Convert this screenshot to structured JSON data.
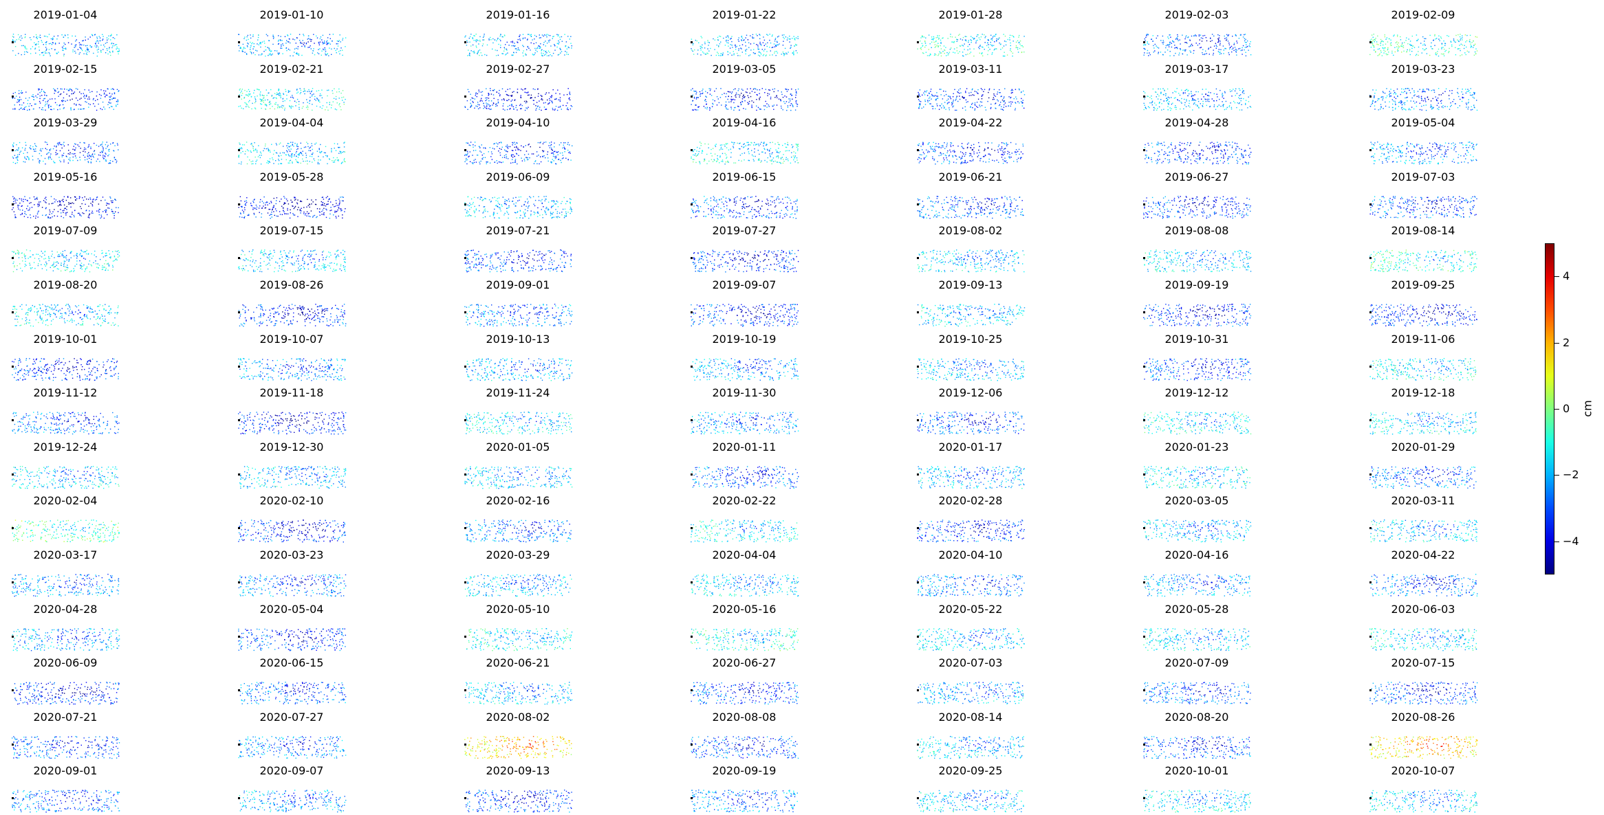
{
  "chart_data": {
    "type": "scatter",
    "description_of_panels": "small-multiple scatter maps of displacement per acquisition date",
    "colormap": "jet",
    "panel_titles": [
      "2019-01-04",
      "2019-01-10",
      "2019-01-16",
      "2019-01-22",
      "2019-01-28",
      "2019-02-03",
      "2019-02-09",
      "2019-02-15",
      "2019-02-21",
      "2019-02-27",
      "2019-03-05",
      "2019-03-11",
      "2019-03-17",
      "2019-03-23",
      "2019-03-29",
      "2019-04-04",
      "2019-04-10",
      "2019-04-16",
      "2019-04-22",
      "2019-04-28",
      "2019-05-04",
      "2019-05-16",
      "2019-05-28",
      "2019-06-09",
      "2019-06-15",
      "2019-06-21",
      "2019-06-27",
      "2019-07-03",
      "2019-07-09",
      "2019-07-15",
      "2019-07-21",
      "2019-07-27",
      "2019-08-02",
      "2019-08-08",
      "2019-08-14",
      "2019-08-20",
      "2019-08-26",
      "2019-09-01",
      "2019-09-07",
      "2019-09-13",
      "2019-09-19",
      "2019-09-25",
      "2019-10-01",
      "2019-10-07",
      "2019-10-13",
      "2019-10-19",
      "2019-10-25",
      "2019-10-31",
      "2019-11-06",
      "2019-11-12",
      "2019-11-18",
      "2019-11-24",
      "2019-11-30",
      "2019-12-06",
      "2019-12-12",
      "2019-12-18",
      "2019-12-24",
      "2019-12-30",
      "2020-01-05",
      "2020-01-11",
      "2020-01-17",
      "2020-01-23",
      "2020-01-29",
      "2020-02-04",
      "2020-02-10",
      "2020-02-16",
      "2020-02-22",
      "2020-02-28",
      "2020-03-05",
      "2020-03-11",
      "2020-03-17",
      "2020-03-23",
      "2020-03-29",
      "2020-04-04",
      "2020-04-10",
      "2020-04-16",
      "2020-04-22",
      "2020-04-28",
      "2020-05-04",
      "2020-05-10",
      "2020-05-16",
      "2020-05-22",
      "2020-05-28",
      "2020-06-03",
      "2020-06-09",
      "2020-06-15",
      "2020-06-21",
      "2020-06-27",
      "2020-07-03",
      "2020-07-09",
      "2020-07-15",
      "2020-07-21",
      "2020-07-27",
      "2020-08-02",
      "2020-08-08",
      "2020-08-14",
      "2020-08-20",
      "2020-08-26",
      "2020-09-01",
      "2020-09-07",
      "2020-09-13",
      "2020-09-19",
      "2020-09-25",
      "2020-10-01",
      "2020-10-07"
    ],
    "panel_mean_cm": [
      -1.6,
      -1.8,
      -1.6,
      -1.5,
      -0.8,
      -2.4,
      -0.6,
      -2.6,
      -0.9,
      -3.2,
      -2.9,
      -2.7,
      -1.6,
      -2.2,
      -2.2,
      -1.2,
      -2.6,
      -1.0,
      -2.7,
      -2.7,
      -2.0,
      -3.4,
      -3.3,
      -1.6,
      -2.6,
      -2.4,
      -2.8,
      -2.6,
      -1.0,
      -1.4,
      -2.8,
      -2.9,
      -1.4,
      -1.4,
      -0.6,
      -1.2,
      -3.0,
      -2.2,
      -2.9,
      -1.4,
      -3.0,
      -3.1,
      -3.0,
      -2.0,
      -1.8,
      -1.8,
      -1.6,
      -2.6,
      -1.0,
      -2.4,
      -3.3,
      -1.2,
      -2.0,
      -2.6,
      -1.0,
      -1.2,
      -1.4,
      -1.6,
      -1.6,
      -2.4,
      -1.8,
      -1.2,
      -2.2,
      -0.3,
      -3.0,
      -2.2,
      -1.0,
      -2.8,
      -1.6,
      -1.4,
      -2.0,
      -2.2,
      -1.6,
      -1.4,
      -2.2,
      -1.8,
      -2.4,
      -1.8,
      -2.8,
      -1.0,
      -0.8,
      -1.4,
      -1.4,
      -1.2,
      -3.0,
      -2.4,
      -1.6,
      -2.6,
      -1.8,
      -2.4,
      -2.8,
      -2.6,
      -2.2,
      1.2,
      -2.6,
      -1.4,
      -2.6,
      1.2,
      -2.4,
      -1.8,
      -2.8,
      -2.2,
      -1.4,
      -1.2,
      -1.4
    ],
    "colorbar": {
      "label": "cm",
      "vmin": -5,
      "vmax": 5,
      "ticks": [
        4,
        2,
        0,
        -2,
        -4
      ],
      "tick_labels": [
        "4",
        "2",
        "0",
        "−2",
        "−4"
      ]
    },
    "layout": "15 rows x 7 columns",
    "grid": false,
    "axes_visible": false
  }
}
